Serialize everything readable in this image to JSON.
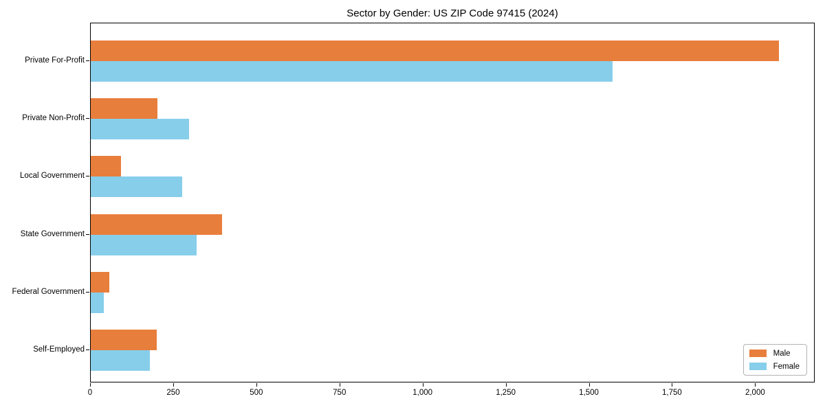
{
  "title": "Sector by Gender: US ZIP Code 97415 (2024)",
  "colors": {
    "male": "#e87e3c",
    "female": "#87ceeb",
    "axis": "#000000",
    "plot_background": "#ffffff",
    "legend_border": "#b3b3b3"
  },
  "chart_data": {
    "type": "bar",
    "orientation": "horizontal",
    "title": "Sector by Gender: US ZIP Code 97415 (2024)",
    "categories": [
      "Private For-Profit",
      "Private Non-Profit",
      "Local Government",
      "State Government",
      "Federal Government",
      "Self-Employed"
    ],
    "series": [
      {
        "name": "Male",
        "color": "#e87e3c",
        "values": [
          2070,
          200,
          90,
          395,
          55,
          198
        ]
      },
      {
        "name": "Female",
        "color": "#87ceeb",
        "values": [
          1570,
          295,
          275,
          318,
          39,
          177
        ]
      }
    ],
    "xlabel": "",
    "ylabel": "",
    "xlim": [
      0,
      2175
    ],
    "x_ticks": [
      0,
      250,
      500,
      750,
      1000,
      1250,
      1500,
      1750,
      2000
    ],
    "x_tick_labels": [
      "0",
      "250",
      "500",
      "750",
      "1,000",
      "1,250",
      "1,500",
      "1,750",
      "2,000"
    ],
    "grid": false,
    "legend_position": "lower right"
  }
}
